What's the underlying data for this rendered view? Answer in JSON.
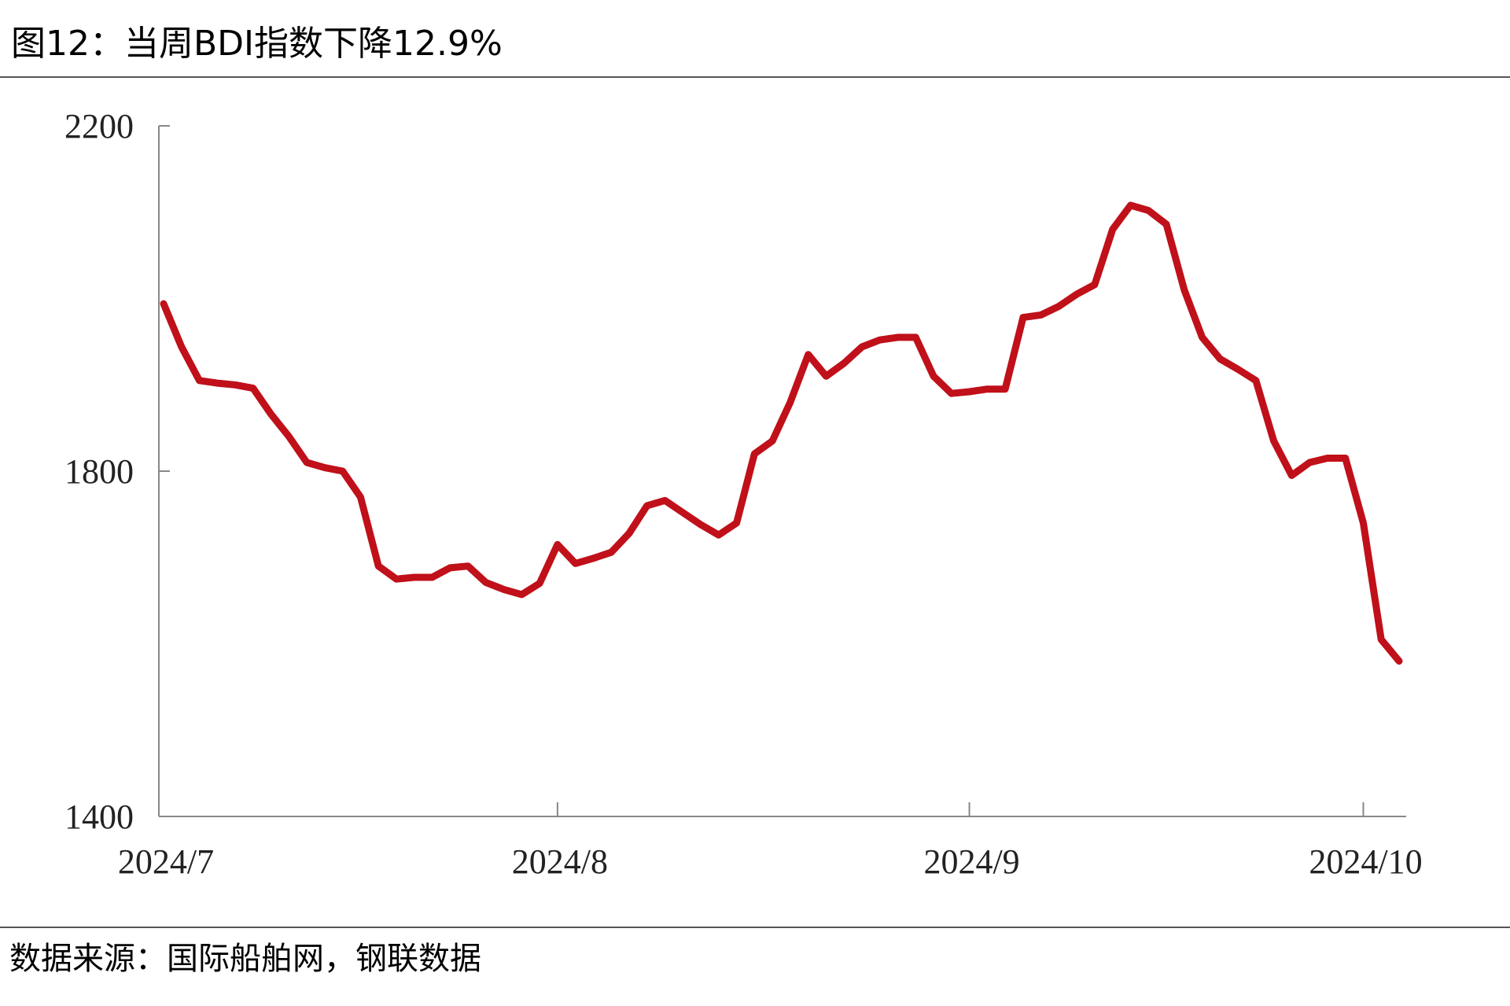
{
  "title": "图12：当周BDI指数下降12.9%",
  "source": "数据来源：国际船舶网，钢联数据",
  "chart_data": {
    "type": "line",
    "categories": [
      "2024/7",
      null,
      null,
      null,
      null,
      null,
      null,
      null,
      null,
      null,
      null,
      null,
      null,
      null,
      null,
      null,
      null,
      null,
      null,
      null,
      null,
      null,
      "2024/8",
      null,
      null,
      null,
      null,
      null,
      null,
      null,
      null,
      null,
      null,
      null,
      null,
      null,
      null,
      null,
      null,
      null,
      null,
      null,
      null,
      null,
      null,
      "2024/9",
      null,
      null,
      null,
      null,
      null,
      null,
      null,
      null,
      null,
      null,
      null,
      null,
      null,
      null,
      null,
      null,
      null,
      null,
      null,
      null,
      null,
      "2024/10",
      null,
      null
    ],
    "series": [
      {
        "color": "#c0101a",
        "values": [
          1994,
          1944,
          1905,
          1902,
          1900,
          1896,
          1866,
          1840,
          1810,
          1804,
          1800,
          1770,
          1690,
          1675,
          1677,
          1677,
          1688,
          1690,
          1671,
          1663,
          1657,
          1670,
          1715,
          1693,
          1699,
          1706,
          1728,
          1760,
          1766,
          1752,
          1738,
          1726,
          1740,
          1820,
          1835,
          1880,
          1935,
          1910,
          1925,
          1944,
          1952,
          1955,
          1955,
          1910,
          1890,
          1892,
          1895,
          1895,
          1978,
          1981,
          1991,
          2005,
          2016,
          2080,
          2108,
          2102,
          2086,
          2010,
          1955,
          1930,
          1918,
          1905,
          1835,
          1795,
          1810,
          1815,
          1815,
          1740,
          1605,
          1580
        ]
      }
    ],
    "ylim": [
      1400,
      2200
    ],
    "yticks": [
      1400,
      1800,
      2200
    ]
  }
}
